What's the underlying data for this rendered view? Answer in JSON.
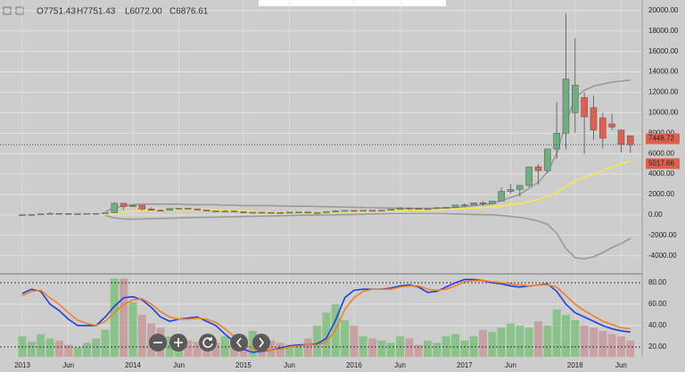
{
  "chart_data": [
    {
      "type": "candlestick",
      "ohlc_header": [
        "O7751.43",
        "H7751.43",
        "L6072.00",
        "C6876.61"
      ],
      "categories": [
        "2013",
        null,
        null,
        null,
        null,
        "Jun",
        null,
        null,
        null,
        null,
        null,
        null,
        "2014",
        null,
        null,
        null,
        null,
        "Jun",
        null,
        null,
        null,
        null,
        null,
        null,
        "2015",
        null,
        null,
        null,
        null,
        "Jun",
        null,
        null,
        null,
        null,
        null,
        null,
        "2016",
        null,
        null,
        null,
        null,
        "Jun",
        null,
        null,
        null,
        null,
        null,
        null,
        "2017",
        null,
        null,
        null,
        null,
        "Jun",
        null,
        null,
        null,
        null,
        null,
        null,
        "2018",
        null,
        null,
        null,
        null,
        "Jun",
        null
      ],
      "open": [
        13,
        20,
        33,
        93,
        139,
        129,
        97,
        106,
        141,
        141,
        204,
        1130,
        805,
        938,
        570,
        450,
        445,
        630,
        640,
        585,
        480,
        390,
        340,
        380,
        320,
        220,
        255,
        245,
        235,
        230,
        265,
        285,
        230,
        236,
        315,
        378,
        430,
        370,
        437,
        416,
        448,
        531,
        674,
        624,
        574,
        609,
        701,
        742,
        963,
        970,
        1190,
        1080,
        1350,
        2300,
        2480,
        2875,
        4700,
        4340,
        6450,
        8000,
        10000,
        11500,
        10500,
        9500,
        8900,
        8300,
        7751.43
      ],
      "high": [
        22,
        33,
        95,
        266,
        140,
        130,
        110,
        142,
        144,
        210,
        1240,
        1160,
        1000,
        940,
        720,
        550,
        630,
        670,
        650,
        600,
        500,
        420,
        460,
        400,
        320,
        260,
        300,
        260,
        250,
        270,
        300,
        320,
        250,
        330,
        500,
        470,
        460,
        440,
        440,
        470,
        550,
        780,
        700,
        630,
        615,
        740,
        760,
        980,
        1150,
        1200,
        1350,
        1350,
        2700,
        3000,
        2950,
        4700,
        4980,
        6450,
        11000,
        19700,
        17300,
        12000,
        11700,
        10000,
        9900,
        8400,
        7751.43
      ],
      "low": [
        13,
        19,
        33,
        50,
        80,
        66,
        65,
        102,
        110,
        106,
        204,
        500,
        750,
        410,
        440,
        340,
        440,
        540,
        570,
        440,
        370,
        280,
        330,
        300,
        150,
        200,
        240,
        215,
        225,
        220,
        260,
        200,
        225,
        235,
        300,
        350,
        350,
        365,
        395,
        410,
        440,
        530,
        470,
        530,
        570,
        605,
        680,
        740,
        750,
        920,
        890,
        1070,
        1340,
        2100,
        1800,
        2700,
        2950,
        4100,
        5500,
        6400,
        8000,
        6000,
        7300,
        6500,
        8300,
        6100,
        6072
      ],
      "close": [
        20,
        33,
        93,
        139,
        129,
        97,
        106,
        141,
        141,
        204,
        1130,
        805,
        938,
        570,
        450,
        445,
        630,
        640,
        585,
        480,
        390,
        340,
        380,
        320,
        220,
        255,
        245,
        235,
        230,
        265,
        285,
        230,
        236,
        315,
        378,
        430,
        370,
        437,
        416,
        448,
        531,
        674,
        624,
        574,
        609,
        701,
        742,
        963,
        970,
        1190,
        1080,
        1350,
        2300,
        2480,
        2875,
        4700,
        4340,
        6450,
        8000,
        13300,
        12700,
        9600,
        8300,
        7500,
        8600,
        6900,
        6876.61
      ],
      "up_color": "#6fae7e",
      "down_color": "#e0604f",
      "overlays": [
        {
          "color": "#9a9a9a",
          "values": [
            null,
            null,
            null,
            null,
            null,
            null,
            null,
            null,
            null,
            300,
            700,
            900,
            1000,
            1050,
            1050,
            1050,
            1050,
            1050,
            1000,
            1000,
            1000,
            1000,
            950,
            950,
            900,
            900,
            900,
            900,
            880,
            850,
            850,
            850,
            820,
            800,
            780,
            760,
            740,
            720,
            700,
            680,
            660,
            650,
            640,
            640,
            640,
            650,
            680,
            720,
            800,
            900,
            1000,
            1100,
            1400,
            1700,
            2000,
            2600,
            3200,
            4200,
            6000,
            9000,
            11500,
            12200,
            12600,
            12800,
            13000,
            13100,
            13200
          ]
        },
        {
          "color": "#9a9a9a",
          "values": [
            null,
            null,
            null,
            null,
            null,
            null,
            null,
            null,
            null,
            -50,
            -300,
            -400,
            -420,
            -400,
            -380,
            -350,
            -320,
            -300,
            -280,
            -260,
            -240,
            -220,
            -200,
            -180,
            -160,
            -140,
            -120,
            -100,
            -80,
            -60,
            -40,
            -30,
            -20,
            -10,
            0,
            20,
            40,
            60,
            80,
            100,
            110,
            120,
            120,
            120,
            120,
            120,
            100,
            80,
            60,
            40,
            20,
            0,
            -60,
            -150,
            -250,
            -400,
            -600,
            -900,
            -1800,
            -3300,
            -4200,
            -4300,
            -4100,
            -3700,
            -3200,
            -2800,
            -2300
          ]
        },
        {
          "color": "#f5e94a",
          "values": [
            null,
            null,
            null,
            null,
            null,
            null,
            null,
            null,
            null,
            40,
            150,
            260,
            350,
            420,
            460,
            480,
            500,
            520,
            530,
            520,
            500,
            470,
            440,
            400,
            360,
            330,
            300,
            280,
            260,
            250,
            250,
            250,
            250,
            260,
            270,
            290,
            300,
            320,
            340,
            360,
            380,
            410,
            440,
            460,
            480,
            510,
            540,
            580,
            620,
            670,
            720,
            780,
            880,
            980,
            1100,
            1300,
            1500,
            1800,
            2200,
            2800,
            3300,
            3700,
            4000,
            4300,
            4700,
            5000,
            5300
          ]
        }
      ],
      "price_labels": [
        {
          "value": 7448.72,
          "label": "7448.72",
          "color": "#e0604f"
        },
        {
          "value": 5017.66,
          "label": "5017.66",
          "color": "#e0604f"
        }
      ],
      "ylim": [
        -5600,
        20600
      ],
      "yticks": [
        {
          "value": 20000,
          "label": "20000.00"
        },
        {
          "value": 18000,
          "label": "18000.00"
        },
        {
          "value": 16000,
          "label": "16000.00"
        },
        {
          "value": 14000,
          "label": "14000.00"
        },
        {
          "value": 12000,
          "label": "12000.00"
        },
        {
          "value": 10000,
          "label": "10000.00"
        },
        {
          "value": 8000,
          "label": "8000.00"
        },
        {
          "value": 6000,
          "label": "6000.00"
        },
        {
          "value": 4000,
          "label": "4000.00"
        },
        {
          "value": 2000,
          "label": "2000.00"
        },
        {
          "value": 0,
          "label": "0.00"
        },
        {
          "value": -2000,
          "label": "-2000.00"
        },
        {
          "value": -4000,
          "label": "-4000.00"
        }
      ],
      "grid": true,
      "last_price_line": true
    },
    {
      "type": "oscillator",
      "series": [
        {
          "color": "#1f3fe0",
          "values": [
            70,
            74,
            72,
            60,
            54,
            46,
            40,
            40,
            40,
            48,
            58,
            66,
            67,
            64,
            57,
            48,
            44,
            46,
            47,
            48,
            44,
            40,
            32,
            25,
            18,
            15,
            16,
            17,
            19,
            21,
            22,
            22,
            23,
            28,
            45,
            66,
            73,
            74,
            74,
            74,
            75,
            77,
            78,
            76,
            71,
            72,
            76,
            80,
            83,
            83,
            82,
            80,
            79,
            77,
            76,
            77,
            78,
            79,
            72,
            60,
            52,
            48,
            44,
            40,
            37,
            35,
            34
          ]
        },
        {
          "color": "#f08020",
          "values": [
            68,
            72,
            73,
            66,
            60,
            52,
            45,
            42,
            40,
            44,
            52,
            60,
            64,
            65,
            60,
            53,
            48,
            46,
            46,
            47,
            46,
            43,
            37,
            30,
            23,
            18,
            17,
            17,
            18,
            20,
            21,
            22,
            22,
            25,
            36,
            55,
            66,
            72,
            74,
            74,
            74,
            76,
            77,
            77,
            74,
            73,
            74,
            77,
            81,
            82,
            82,
            81,
            80,
            79,
            78,
            77,
            78,
            78,
            76,
            68,
            60,
            54,
            49,
            44,
            41,
            38,
            37
          ]
        }
      ],
      "histogram": {
        "values": [
          30,
          25,
          32,
          28,
          26,
          22,
          20,
          24,
          28,
          36,
          84,
          84,
          62,
          50,
          42,
          38,
          30,
          28,
          26,
          25,
          28,
          24,
          30,
          22,
          22,
          35,
          28,
          26,
          24,
          22,
          22,
          28,
          40,
          52,
          60,
          45,
          40,
          30,
          28,
          26,
          24,
          30,
          28,
          22,
          26,
          24,
          30,
          32,
          26,
          30,
          36,
          34,
          38,
          42,
          40,
          38,
          44,
          40,
          55,
          50,
          45,
          40,
          38,
          35,
          32,
          30,
          26
        ],
        "up_color": "#7fbf7f",
        "down_color": "#c79a9a"
      },
      "ylim": [
        10.8,
        85.8
      ],
      "yticks": [
        {
          "value": 80,
          "label": "80.00"
        },
        {
          "value": 60,
          "label": "60.00"
        },
        {
          "value": 40,
          "label": "40.00"
        },
        {
          "value": 20,
          "label": "20.00"
        }
      ],
      "reference_lines": [
        80,
        20
      ]
    }
  ]
}
